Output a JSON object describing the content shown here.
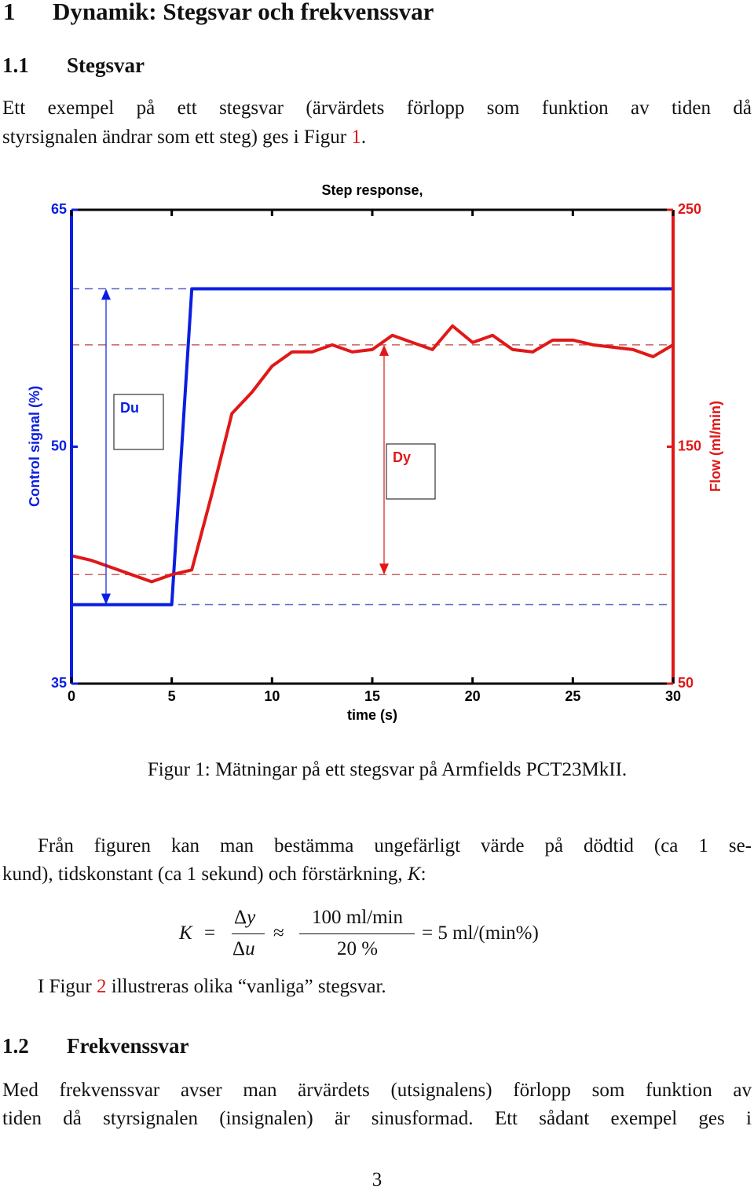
{
  "heading": {
    "number": "1",
    "title": "Dynamik: Stegsvar och frekvenssvar"
  },
  "subsections": [
    {
      "number": "1.1",
      "title": "Stegsvar"
    },
    {
      "number": "1.2",
      "title": "Frekvenssvar"
    }
  ],
  "paragraph1": {
    "lines": [
      [
        "Ett exempel på ett stegsvar (ärvärdets förlopp som funktion av tiden då"
      ],
      [
        "styrsignalen ändrar som ett steg) ges i Figur ",
        "1",
        "."
      ]
    ]
  },
  "figure": {
    "chart_data": {
      "type": "line",
      "title": "Step response,",
      "xlabel": "time (s)",
      "ylabel": "Control signal (%)",
      "y2label": "Flow (ml/min)",
      "xlim": [
        0,
        30
      ],
      "xticks": [
        0,
        5,
        10,
        15,
        20,
        25,
        30
      ],
      "ylim": [
        35,
        65
      ],
      "yticks": [
        35,
        50,
        65
      ],
      "y2lim": [
        50,
        250
      ],
      "y2ticks": [
        50,
        150,
        250
      ],
      "series": [
        {
          "color": "#0a1ee0",
          "x": [
            0,
            5,
            6,
            30
          ],
          "values": [
            40,
            40,
            60,
            60
          ]
        },
        {
          "color": "#e01818",
          "axis": "y2",
          "x": [
            0,
            1,
            2,
            3,
            4,
            5,
            6,
            7,
            8,
            9,
            10,
            11,
            12,
            13,
            14,
            15,
            16,
            17,
            18,
            19,
            20,
            21,
            22,
            23,
            24,
            25,
            26,
            27,
            28,
            29,
            30
          ],
          "values": [
            104,
            102,
            99,
            96,
            93,
            96,
            98,
            130,
            164,
            173,
            184,
            190,
            190,
            193,
            190,
            191,
            197,
            194,
            191,
            201,
            194,
            197,
            191,
            190,
            195,
            195,
            193,
            192,
            191,
            188,
            193
          ]
        }
      ],
      "hlines": [
        {
          "value": 60,
          "axis": "y",
          "color": "#5a66c8"
        },
        {
          "value": 40,
          "axis": "y",
          "color": "#5a66c8"
        },
        {
          "value": 193,
          "axis": "y2",
          "color": "#c86060"
        },
        {
          "value": 96,
          "axis": "y2",
          "color": "#c86060"
        }
      ],
      "annotations": [
        {
          "text": "Du",
          "color": "#0a1ee0"
        },
        {
          "text": "Dy",
          "color": "#e01818"
        }
      ]
    }
  },
  "caption": "Figur 1: Mätningar på ett stegsvar på Armfields PCT23MkII.",
  "paragraph2": {
    "lines": [
      [
        "Från figuren kan man bestämma ungefärligt värde på dödtid (ca 1 se-"
      ],
      [
        "kund), tidskonstant (ca 1 sekund) och förstärkning, ",
        "K",
        ":"
      ]
    ]
  },
  "equation": {
    "lhs": "K",
    "eq": "=",
    "num1": [
      "Δ",
      "y"
    ],
    "den1": [
      "Δ",
      "u"
    ],
    "approx": "≈",
    "num2": "100 ml/min",
    "den2": "20 %",
    "rhs": "= 5 ml/(min%)"
  },
  "paragraph3": {
    "lines": [
      [
        "I Figur ",
        "2",
        " illustreras olika “vanliga” stegsvar."
      ]
    ]
  },
  "paragraph4": {
    "lines": [
      [
        "Med frekvenssvar avser man ärvärdets (utsignalens) förlopp som funktion av"
      ],
      [
        "tiden då styrsignalen (insignalen) är sinusformad. Ett sådant exempel ges i"
      ]
    ]
  },
  "page_number": "3"
}
